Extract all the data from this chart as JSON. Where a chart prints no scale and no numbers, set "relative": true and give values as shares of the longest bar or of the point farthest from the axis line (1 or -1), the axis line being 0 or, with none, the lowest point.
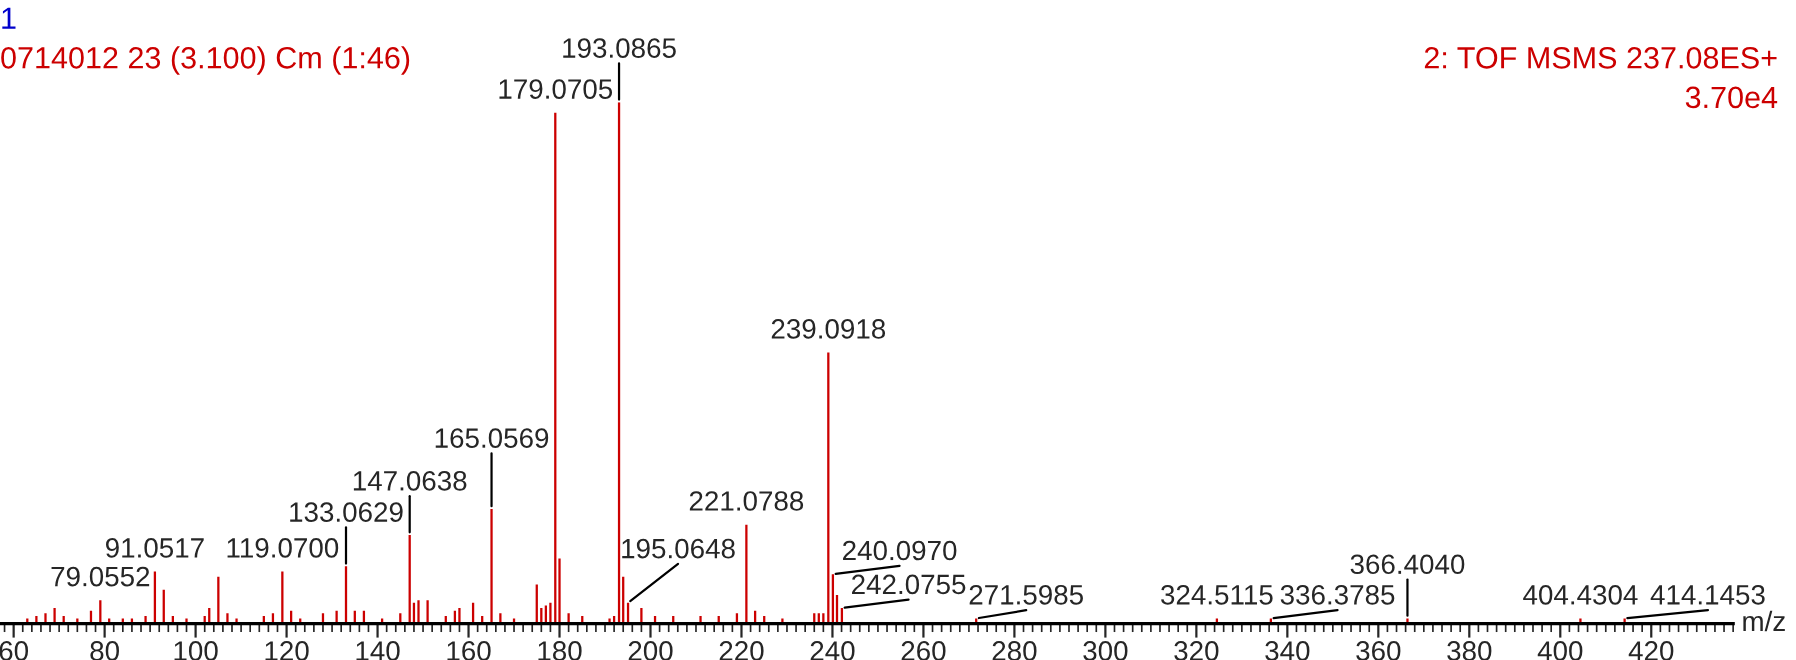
{
  "chart_data": {
    "type": "bar",
    "relative": true,
    "xlabel": "m/z",
    "tick_labels": "x",
    "grid": false,
    "legend": false,
    "annotations": [
      "1",
      "0714012 23 (3.100) Cm (1:46)",
      "2: TOF MSMS 237.08ES+",
      "3.70e4",
      {
        "text": "79.0552",
        "x": 79.0552,
        "y": 0.045
      },
      {
        "text": "91.0517",
        "x": 91.0517,
        "y": 0.1
      },
      {
        "text": "119.0700",
        "x": 119.07,
        "y": 0.1
      },
      {
        "text": "133.0629",
        "x": 133.0629,
        "y": 0.11
      },
      {
        "text": "147.0638",
        "x": 147.0638,
        "y": 0.17
      },
      {
        "text": "165.0569",
        "x": 165.0569,
        "y": 0.22
      },
      {
        "text": "179.0705",
        "x": 179.0705,
        "y": 0.98
      },
      {
        "text": "193.0865",
        "x": 193.0865,
        "y": 1
      },
      {
        "text": "195.0648",
        "x": 195.0648,
        "y": 0.04
      },
      {
        "text": "221.0788",
        "x": 221.0788,
        "y": 0.19
      },
      {
        "text": "239.0918",
        "x": 239.0918,
        "y": 0.52
      },
      {
        "text": "240.0970",
        "x": 240.097,
        "y": 0.095
      },
      {
        "text": "242.0755",
        "x": 242.0755,
        "y": 0.03
      },
      {
        "text": "271.5985",
        "x": 271.5985,
        "y": 0.01
      },
      {
        "text": "324.5115",
        "x": 324.5115,
        "y": 0.01
      },
      {
        "text": "336.3785",
        "x": 336.3785,
        "y": 0.01
      },
      {
        "text": "366.4040",
        "x": 366.404,
        "y": 0.01
      },
      {
        "text": "404.4304",
        "x": 404.4304,
        "y": 0.01
      },
      {
        "text": "414.1453",
        "x": 414.1453,
        "y": 0.01
      }
    ],
    "xlim": [
      57,
      438
    ],
    "xticks": [
      60,
      80,
      100,
      120,
      140,
      160,
      180,
      200,
      220,
      240,
      260,
      280,
      300,
      320,
      340,
      360,
      380,
      400,
      420
    ],
    "x": [
      63,
      65,
      67,
      69,
      71,
      74,
      77,
      79.0552,
      81,
      84,
      86,
      89,
      91.0517,
      93,
      95,
      98,
      102,
      103,
      105,
      107,
      109,
      115,
      117,
      119.07,
      121,
      123,
      128,
      131,
      133.0629,
      135,
      137,
      141,
      145,
      147.0638,
      148,
      149,
      151,
      155,
      157,
      158,
      161,
      163,
      165.0569,
      167,
      170,
      175,
      176,
      177,
      178,
      179.0705,
      180,
      182,
      185,
      191,
      192,
      193.0865,
      194,
      195.0648,
      198,
      201,
      205,
      211,
      215,
      219,
      221.0788,
      223,
      225,
      229,
      236,
      237,
      238,
      239.0918,
      240.097,
      241,
      242.0755,
      271.5985,
      324.5115,
      336.3785,
      366.404,
      404.4304,
      414.1453
    ],
    "series": [
      {
        "color": "#cc0000",
        "values": [
          0.01,
          0.015,
          0.02,
          0.03,
          0.015,
          0.01,
          0.025,
          0.045,
          0.01,
          0.01,
          0.01,
          0.015,
          0.1,
          0.065,
          0.015,
          0.01,
          0.015,
          0.03,
          0.09,
          0.02,
          0.01,
          0.015,
          0.02,
          0.1,
          0.025,
          0.01,
          0.02,
          0.025,
          0.11,
          0.025,
          0.025,
          0.01,
          0.02,
          0.17,
          0.04,
          0.045,
          0.045,
          0.015,
          0.025,
          0.03,
          0.04,
          0.015,
          0.22,
          0.02,
          0.01,
          0.075,
          0.03,
          0.035,
          0.04,
          0.98,
          0.125,
          0.02,
          0.015,
          0.01,
          0.015,
          1,
          0.09,
          0.04,
          0.03,
          0.015,
          0.015,
          0.015,
          0.015,
          0.02,
          0.19,
          0.025,
          0.015,
          0.01,
          0.02,
          0.02,
          0.02,
          0.52,
          0.095,
          0.055,
          0.03,
          0.01,
          0.01,
          0.01,
          0.01,
          0.01,
          0.01
        ]
      }
    ]
  }
}
